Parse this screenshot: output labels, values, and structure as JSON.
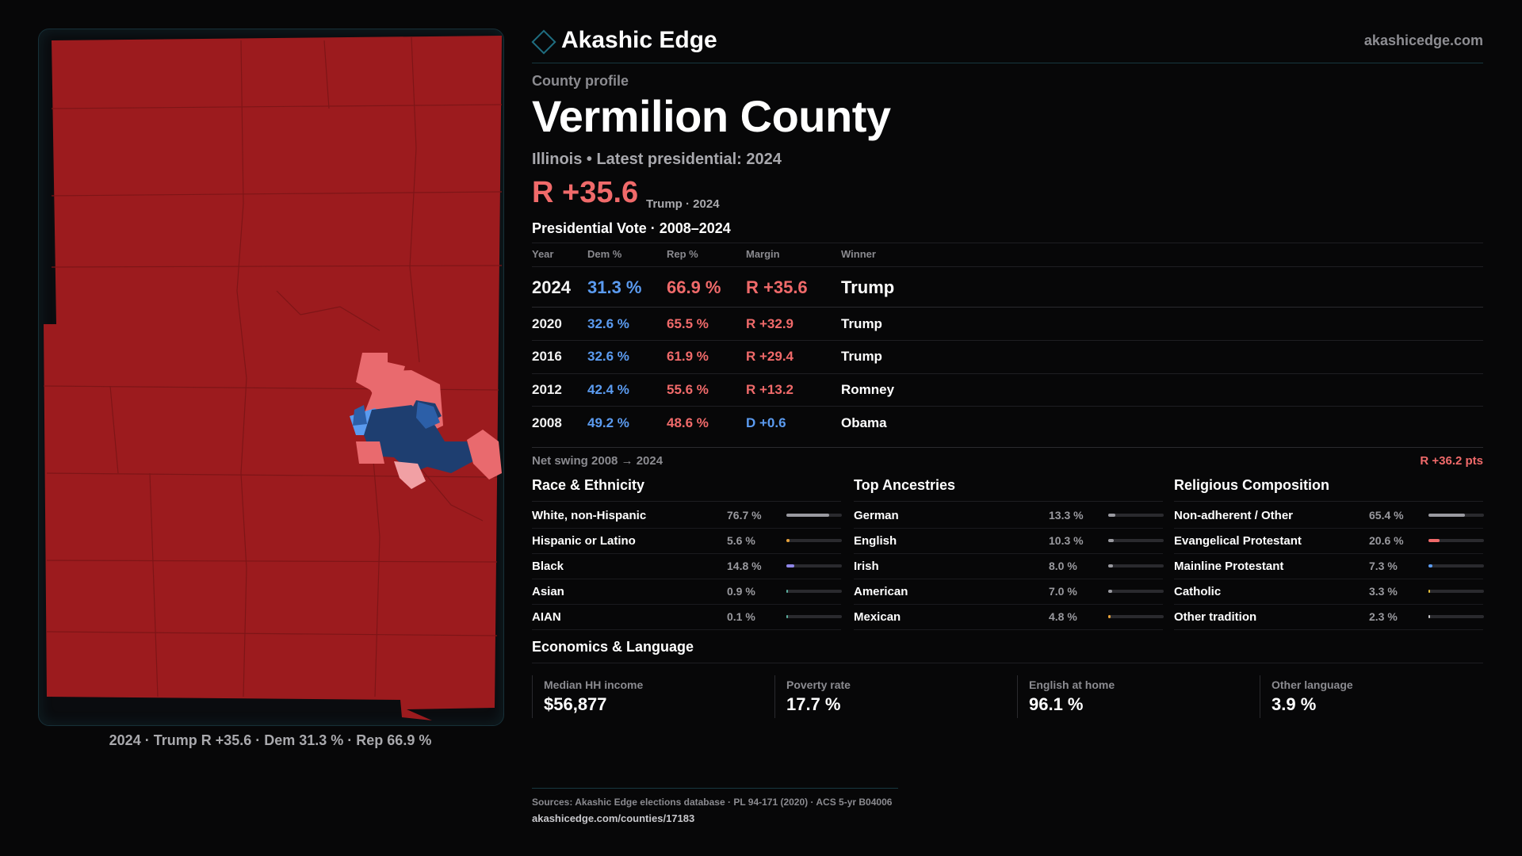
{
  "brand": {
    "name": "Akashic Edge",
    "site": "akashicedge.com"
  },
  "profile": {
    "eyebrow": "County profile",
    "county": "Vermilion County",
    "subline": "Illinois • Latest presidential: 2024",
    "headline_margin": "R +35.6",
    "headline_note": "Trump · 2024"
  },
  "map": {
    "caption": "2024 · Trump R +35.6 · Dem 31.3 % · Rep 66.9 %",
    "colors": {
      "rep_dark": "#9c1b1e",
      "rep_light": "#e96a6e",
      "rep_pale": "#f1a0a4",
      "dem_dark": "#1e3e70",
      "dem_mid": "#2c5fa8",
      "dem_light": "#5b9bf0"
    }
  },
  "vote_table": {
    "title": "Presidential Vote · 2008–2024",
    "headers": [
      "Year",
      "Dem %",
      "Rep %",
      "Margin",
      "Winner"
    ],
    "rows": [
      {
        "year": "2024",
        "dem": "31.3 %",
        "rep": "66.9 %",
        "margin": "R +35.6",
        "party": "R",
        "winner": "Trump"
      },
      {
        "year": "2020",
        "dem": "32.6 %",
        "rep": "65.5 %",
        "margin": "R +32.9",
        "party": "R",
        "winner": "Trump"
      },
      {
        "year": "2016",
        "dem": "32.6 %",
        "rep": "61.9 %",
        "margin": "R +29.4",
        "party": "R",
        "winner": "Trump"
      },
      {
        "year": "2012",
        "dem": "42.4 %",
        "rep": "55.6 %",
        "margin": "R +13.2",
        "party": "R",
        "winner": "Romney"
      },
      {
        "year": "2008",
        "dem": "49.2 %",
        "rep": "48.6 %",
        "margin": "D +0.6",
        "party": "D",
        "winner": "Obama"
      }
    ],
    "swing_label": "Net swing 2008 → 2024",
    "swing_value": "R +36.2 pts"
  },
  "demographics": [
    {
      "title": "Race & Ethnicity",
      "items": [
        {
          "label": "White, non-Hispanic",
          "value": "76.7 %",
          "pct": 76.7,
          "color": "#9a9aa0"
        },
        {
          "label": "Hispanic or Latino",
          "value": "5.6 %",
          "pct": 5.6,
          "color": "#e8a23a"
        },
        {
          "label": "Black",
          "value": "14.8 %",
          "pct": 14.8,
          "color": "#8f86e8"
        },
        {
          "label": "Asian",
          "value": "0.9 %",
          "pct": 0.9,
          "color": "#5bb0a0"
        },
        {
          "label": "AIAN",
          "value": "0.1 %",
          "pct": 0.1,
          "color": "#5bb0a0"
        }
      ]
    },
    {
      "title": "Top Ancestries",
      "items": [
        {
          "label": "German",
          "value": "13.3 %",
          "pct": 13.3,
          "color": "#9a9aa0"
        },
        {
          "label": "English",
          "value": "10.3 %",
          "pct": 10.3,
          "color": "#9a9aa0"
        },
        {
          "label": "Irish",
          "value": "8.0 %",
          "pct": 8.0,
          "color": "#9a9aa0"
        },
        {
          "label": "American",
          "value": "7.0 %",
          "pct": 7.0,
          "color": "#9a9aa0"
        },
        {
          "label": "Mexican",
          "value": "4.8 %",
          "pct": 4.8,
          "color": "#e8a23a"
        }
      ]
    },
    {
      "title": "Religious Composition",
      "items": [
        {
          "label": "Non-adherent / Other",
          "value": "65.4 %",
          "pct": 65.4,
          "color": "#9a9aa0"
        },
        {
          "label": "Evangelical Protestant",
          "value": "20.6 %",
          "pct": 20.6,
          "color": "#f06a6a"
        },
        {
          "label": "Mainline Protestant",
          "value": "7.3 %",
          "pct": 7.3,
          "color": "#5b9bf0"
        },
        {
          "label": "Catholic",
          "value": "3.3 %",
          "pct": 3.3,
          "color": "#e8c23a"
        },
        {
          "label": "Other tradition",
          "value": "2.3 %",
          "pct": 2.3,
          "color": "#c9c9cc"
        }
      ]
    }
  ],
  "economics": {
    "title": "Economics & Language",
    "stats": [
      {
        "label": "Median HH income",
        "value": "$56,877"
      },
      {
        "label": "Poverty rate",
        "value": "17.7 %"
      },
      {
        "label": "English at home",
        "value": "96.1 %"
      },
      {
        "label": "Other language",
        "value": "3.9 %"
      }
    ]
  },
  "footer": {
    "sources": "Sources: Akashic Edge elections database · PL 94-171 (2020) · ACS 5-yr B04006",
    "url": "akashicedge.com/counties/17183"
  }
}
